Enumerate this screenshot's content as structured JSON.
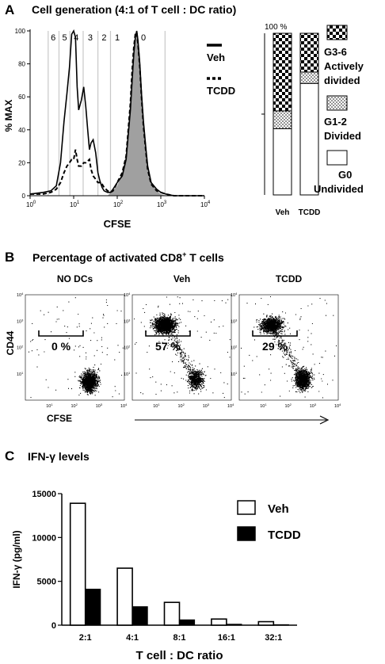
{
  "panel_a": {
    "label": "A",
    "title": "Cell generation (4:1 of T cell : DC ratio)",
    "histogram": {
      "xlabel": "CFSE",
      "ylabel": "% MAX",
      "yticks": [
        "0",
        "20",
        "40",
        "60",
        "80",
        "100"
      ],
      "xticks_exp": [
        "0",
        "1",
        "2",
        "3",
        "4"
      ],
      "xtick_base": "10",
      "generation_labels": [
        "6",
        "5",
        "4",
        "3",
        "2",
        "1",
        "0"
      ],
      "legend": [
        {
          "name": "Veh",
          "style": "solid"
        },
        {
          "name": "TCDD",
          "style": "dashed"
        }
      ]
    },
    "stacked_bar": {
      "top_label": "100 %",
      "categories": [
        "Veh",
        "TCDD"
      ],
      "legend": [
        {
          "pattern": "checker",
          "label_1": "G3-6",
          "label_2": "Actively",
          "label_3": "divided"
        },
        {
          "pattern": "dots",
          "label_1": "G1-2",
          "label_2": "Divided"
        },
        {
          "pattern": "white",
          "label_1": "G0",
          "label_2": "Undivided"
        }
      ]
    }
  },
  "panel_b": {
    "label": "B",
    "title": "Percentage of activated CD8",
    "title_sup": "+",
    "title_tail": " T cells",
    "ylabel": "CD44",
    "xlabel": "CFSE",
    "plots": [
      {
        "title": "NO DCs",
        "percent": "0 %"
      },
      {
        "title": "Veh",
        "percent": "57 %"
      },
      {
        "title": "TCDD",
        "percent": "29 %"
      }
    ]
  },
  "panel_c": {
    "label": "C",
    "title": "IFN-γ levels",
    "legend": [
      {
        "name": "Veh",
        "fill": "#ffffff"
      },
      {
        "name": "TCDD",
        "fill": "#000000"
      }
    ]
  },
  "chart_data": [
    {
      "type": "line",
      "title": "Cell generation (4:1 of T cell : DC ratio)",
      "xlabel": "CFSE",
      "ylabel": "% MAX",
      "xscale": "log",
      "xlim": [
        1,
        10000
      ],
      "ylim": [
        0,
        100
      ],
      "series": [
        {
          "name": "Veh",
          "style": "solid",
          "x": [
            1,
            2,
            3,
            4,
            5,
            6,
            7,
            8,
            9,
            10,
            11,
            12,
            13,
            15,
            17,
            19,
            21,
            23,
            25,
            28,
            32,
            36,
            40,
            45,
            50,
            60,
            70,
            80,
            100,
            130,
            160,
            200,
            220,
            240,
            260,
            280,
            300,
            330,
            360,
            400,
            450,
            500,
            600,
            800,
            1000,
            1300,
            2000,
            10000
          ],
          "y": [
            1,
            2,
            3,
            6,
            20,
            45,
            62,
            78,
            98,
            112,
            96,
            66,
            52,
            58,
            66,
            54,
            40,
            28,
            32,
            34,
            26,
            14,
            9,
            5,
            3,
            2,
            2,
            4,
            8,
            12,
            22,
            52,
            70,
            86,
            96,
            100,
            94,
            80,
            62,
            45,
            30,
            18,
            8,
            4,
            2,
            1,
            0,
            0
          ]
        },
        {
          "name": "TCDD",
          "style": "dashed",
          "x": [
            1,
            2,
            3,
            4,
            5,
            6,
            7,
            8,
            9,
            10,
            11,
            12,
            13,
            15,
            17,
            19,
            21,
            23,
            25,
            28,
            32,
            36,
            40,
            45,
            50,
            60,
            70,
            80,
            100,
            130,
            160,
            200,
            220,
            240,
            260,
            280,
            300,
            330,
            360,
            400,
            450,
            500,
            600,
            800,
            1000,
            1300,
            2000,
            10000
          ],
          "y": [
            1,
            1,
            2,
            4,
            8,
            14,
            18,
            20,
            22,
            22,
            28,
            22,
            18,
            18,
            20,
            20,
            21,
            22,
            16,
            12,
            10,
            8,
            8,
            7,
            5,
            3,
            2,
            3,
            8,
            14,
            24,
            56,
            76,
            90,
            98,
            99,
            92,
            78,
            60,
            42,
            28,
            16,
            7,
            3,
            2,
            1,
            0,
            0
          ]
        },
        {
          "name": "",
          "style": "filled-gray",
          "x": [
            60,
            100,
            130,
            160,
            200,
            220,
            240,
            260,
            280,
            300,
            330,
            360,
            400,
            450,
            500,
            600,
            800,
            1000,
            1300
          ],
          "y": [
            0,
            6,
            14,
            26,
            58,
            75,
            90,
            97,
            100,
            95,
            80,
            62,
            45,
            30,
            18,
            8,
            3,
            1,
            0
          ]
        }
      ]
    },
    {
      "type": "bar",
      "stacked": true,
      "categories": [
        "Veh",
        "TCDD"
      ],
      "ylim": [
        0,
        100
      ],
      "series": [
        {
          "name": "G0 Undivided",
          "values": [
            41,
            69
          ]
        },
        {
          "name": "G1-2 Divided",
          "values": [
            11,
            7
          ]
        },
        {
          "name": "G3-6 Actively divided",
          "values": [
            48,
            24
          ]
        }
      ]
    },
    {
      "type": "scatter",
      "title": "NO DCs",
      "xlabel": "CFSE",
      "ylabel": "CD44",
      "xscale": "log",
      "yscale": "log",
      "xlim": [
        1,
        10000
      ],
      "ylim": [
        1,
        10000
      ],
      "gate_percent": 0,
      "clusters": [
        {
          "x": 380,
          "y": 5,
          "count": 1500
        }
      ]
    },
    {
      "type": "scatter",
      "title": "Veh",
      "xlabel": "CFSE",
      "ylabel": "CD44",
      "xscale": "log",
      "yscale": "log",
      "xlim": [
        1,
        10000
      ],
      "ylim": [
        1,
        10000
      ],
      "gate_percent": 57,
      "clusters": [
        {
          "x": 20,
          "y": 700,
          "count": 1800
        },
        {
          "x": 360,
          "y": 6,
          "count": 650
        }
      ]
    },
    {
      "type": "scatter",
      "title": "TCDD",
      "xlabel": "CFSE",
      "ylabel": "CD44",
      "xscale": "log",
      "yscale": "log",
      "xlim": [
        1,
        10000
      ],
      "ylim": [
        1,
        10000
      ],
      "gate_percent": 29,
      "clusters": [
        {
          "x": 20,
          "y": 700,
          "count": 1200
        },
        {
          "x": 360,
          "y": 6,
          "count": 1200
        }
      ]
    },
    {
      "type": "bar",
      "title": "IFN-γ levels",
      "xlabel": "T cell : DC ratio",
      "ylabel": "IFN-γ (pg/ml)",
      "categories": [
        "2:1",
        "4:1",
        "8:1",
        "16:1",
        "32:1"
      ],
      "yticks": [
        0,
        5000,
        10000,
        15000
      ],
      "ylim": [
        0,
        15000
      ],
      "series": [
        {
          "name": "Veh",
          "values": [
            13900,
            6500,
            2600,
            700,
            400
          ]
        },
        {
          "name": "TCDD",
          "values": [
            4100,
            2100,
            600,
            100,
            50
          ]
        }
      ]
    }
  ]
}
